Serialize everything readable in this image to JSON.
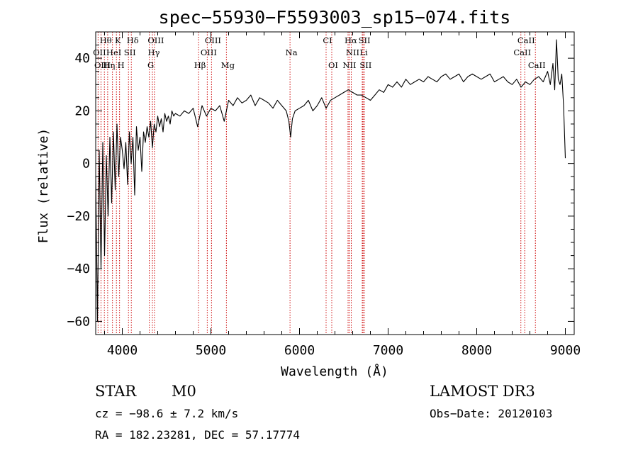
{
  "chart_data": {
    "type": "line",
    "title": "spec−55930−F5593003_sp15−074.fits",
    "xlabel": "Wavelength (Å)",
    "ylabel": "Flux (relative)",
    "xlim": [
      3700,
      9100
    ],
    "ylim": [
      -65,
      50
    ],
    "x_ticks": [
      4000,
      5000,
      6000,
      7000,
      8000,
      9000
    ],
    "x_tick_labels": [
      "4000",
      "5000",
      "6000",
      "7000",
      "8000",
      "9000"
    ],
    "y_ticks": [
      -60,
      -40,
      -20,
      0,
      20,
      40
    ],
    "y_tick_labels": [
      "−60",
      "−40",
      "−20",
      "0",
      "20",
      "40"
    ],
    "series": [
      {
        "color": "#000000",
        "x": [
          3700,
          3720,
          3740,
          3760,
          3780,
          3800,
          3820,
          3840,
          3860,
          3880,
          3900,
          3920,
          3940,
          3960,
          3980,
          4000,
          4020,
          4040,
          4060,
          4080,
          4100,
          4120,
          4140,
          4160,
          4180,
          4200,
          4220,
          4240,
          4260,
          4280,
          4300,
          4320,
          4340,
          4360,
          4380,
          4400,
          4420,
          4440,
          4460,
          4480,
          4500,
          4520,
          4540,
          4560,
          4580,
          4600,
          4650,
          4700,
          4750,
          4800,
          4850,
          4900,
          4950,
          5000,
          5050,
          5100,
          5150,
          5200,
          5250,
          5300,
          5350,
          5400,
          5450,
          5500,
          5550,
          5600,
          5650,
          5700,
          5750,
          5800,
          5850,
          5880,
          5900,
          5920,
          5950,
          6000,
          6050,
          6100,
          6150,
          6200,
          6250,
          6300,
          6350,
          6400,
          6450,
          6500,
          6550,
          6600,
          6650,
          6700,
          6750,
          6800,
          6850,
          6900,
          6950,
          7000,
          7050,
          7100,
          7150,
          7200,
          7250,
          7300,
          7350,
          7400,
          7450,
          7500,
          7550,
          7600,
          7650,
          7700,
          7750,
          7800,
          7850,
          7900,
          7950,
          8000,
          8050,
          8100,
          8150,
          8200,
          8250,
          8300,
          8350,
          8400,
          8450,
          8500,
          8550,
          8600,
          8650,
          8700,
          8750,
          8800,
          8830,
          8860,
          8880,
          8900,
          8920,
          8940,
          8960,
          8980,
          9000
        ],
        "y": [
          -5,
          -60,
          5,
          -40,
          8,
          -35,
          3,
          -20,
          10,
          -15,
          12,
          -10,
          15,
          -5,
          10,
          5,
          -2,
          8,
          -8,
          12,
          0,
          10,
          -12,
          14,
          5,
          10,
          -3,
          12,
          8,
          14,
          10,
          16,
          6,
          15,
          12,
          18,
          14,
          17,
          12,
          19,
          16,
          18,
          15,
          20,
          18,
          19,
          18,
          20,
          19,
          21,
          14,
          22,
          18,
          21,
          20,
          22,
          16,
          24,
          22,
          25,
          23,
          24,
          26,
          22,
          25,
          24,
          23,
          21,
          24,
          22,
          20,
          16,
          10,
          17,
          20,
          21,
          22,
          24,
          20,
          22,
          25,
          21,
          24,
          25,
          26,
          27,
          28,
          27,
          26,
          26,
          25,
          24,
          26,
          28,
          27,
          30,
          29,
          31,
          29,
          32,
          30,
          31,
          32,
          31,
          33,
          32,
          31,
          33,
          34,
          32,
          33,
          34,
          31,
          33,
          34,
          33,
          32,
          33,
          34,
          31,
          32,
          33,
          31,
          30,
          32,
          29,
          31,
          30,
          32,
          33,
          31,
          35,
          30,
          38,
          28,
          47,
          32,
          30,
          34,
          22,
          2
        ]
      }
    ],
    "line_markers": [
      {
        "label": "Hθ",
        "x": 3798,
        "row": 0
      },
      {
        "label": "K",
        "x": 3934,
        "row": 0
      },
      {
        "label": "Hδ",
        "x": 4102,
        "row": 0
      },
      {
        "label": "OIII",
        "x": 4363,
        "row": 0
      },
      {
        "label": "OIII",
        "x": 5007,
        "row": 0
      },
      {
        "label": "CI",
        "x": 6300,
        "row": 0
      },
      {
        "label": "Hα",
        "x": 6563,
        "row": 0
      },
      {
        "label": "SII",
        "x": 6717,
        "row": 0
      },
      {
        "label": "CaII",
        "x": 8542,
        "row": 0
      },
      {
        "label": "OII",
        "x": 3727,
        "row": 1
      },
      {
        "label": "HeI",
        "x": 3889,
        "row": 1
      },
      {
        "label": "SII",
        "x": 4070,
        "row": 1
      },
      {
        "label": "Hγ",
        "x": 4340,
        "row": 1
      },
      {
        "label": "OIII",
        "x": 4959,
        "row": 1
      },
      {
        "label": "Na",
        "x": 5893,
        "row": 1
      },
      {
        "label": "NII",
        "x": 6584,
        "row": 1
      },
      {
        "label": "Li",
        "x": 6708,
        "row": 1
      },
      {
        "label": "CaII",
        "x": 8498,
        "row": 1
      },
      {
        "label": "OIII",
        "x": 3760,
        "row": 2
      },
      {
        "label": "Hη",
        "x": 3835,
        "row": 2
      },
      {
        "label": "H",
        "x": 3969,
        "row": 2
      },
      {
        "label": "G",
        "x": 4305,
        "row": 2
      },
      {
        "label": "Hβ",
        "x": 4861,
        "row": 2
      },
      {
        "label": "Mg",
        "x": 5175,
        "row": 2
      },
      {
        "label": "OI",
        "x": 6364,
        "row": 2
      },
      {
        "label": "NII",
        "x": 6548,
        "row": 2
      },
      {
        "label": "SII",
        "x": 6731,
        "row": 2
      },
      {
        "label": "CaII",
        "x": 8662,
        "row": 2
      }
    ]
  },
  "info": {
    "object_class": "STAR",
    "subclass": "M0",
    "survey": "LAMOST DR3",
    "cz": "cz = −98.6 ± 7.2 km/s",
    "obs_date": "Obs−Date: 20120103",
    "coords": "RA = 182.23281, DEC =  57.17774"
  }
}
